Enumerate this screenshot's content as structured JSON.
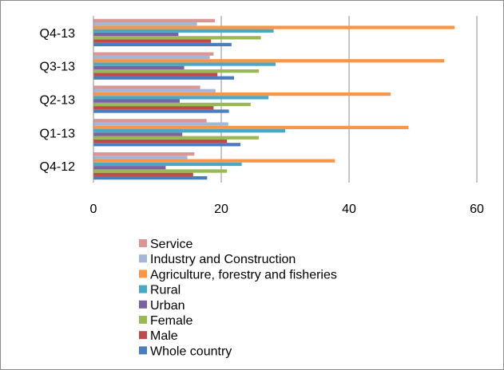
{
  "chart_data": {
    "type": "bar",
    "orientation": "horizontal",
    "categories": [
      "Q4-12",
      "Q1-13",
      "Q2-13",
      "Q3-13",
      "Q4-13"
    ],
    "series": [
      {
        "name": "Whole country",
        "color": "#4a7ebb",
        "values": [
          17.8,
          23.0,
          21.2,
          22.0,
          21.6
        ]
      },
      {
        "name": "Male",
        "color": "#be4b48",
        "values": [
          15.6,
          20.9,
          18.8,
          19.4,
          18.4
        ]
      },
      {
        "name": "Female",
        "color": "#98b954",
        "values": [
          20.9,
          25.9,
          24.6,
          25.9,
          26.2
        ]
      },
      {
        "name": "Urban",
        "color": "#7d60a0",
        "values": [
          11.3,
          13.9,
          13.5,
          14.2,
          13.3
        ]
      },
      {
        "name": "Rural",
        "color": "#46aac5",
        "values": [
          23.2,
          30.0,
          27.4,
          28.5,
          28.2
        ]
      },
      {
        "name": "Agriculture, forestry and fisheries",
        "color": "#f79646",
        "values": [
          37.8,
          49.3,
          46.5,
          54.9,
          56.5
        ]
      },
      {
        "name": "Industry and Construction",
        "color": "#a5b6d9",
        "values": [
          14.7,
          21.1,
          19.1,
          18.2,
          16.2
        ]
      },
      {
        "name": "Service",
        "color": "#d99694",
        "values": [
          15.8,
          17.7,
          16.7,
          18.8,
          19.0
        ]
      }
    ],
    "legend_order": [
      "Service",
      "Industry and Construction",
      "Agriculture, forestry and fisheries",
      "Rural",
      "Urban",
      "Female",
      "Male",
      "Whole country"
    ],
    "xlim": [
      0,
      60
    ],
    "xticks": [
      "0",
      "20",
      "40",
      "60"
    ],
    "grid": true,
    "legend_position": "bottom"
  }
}
